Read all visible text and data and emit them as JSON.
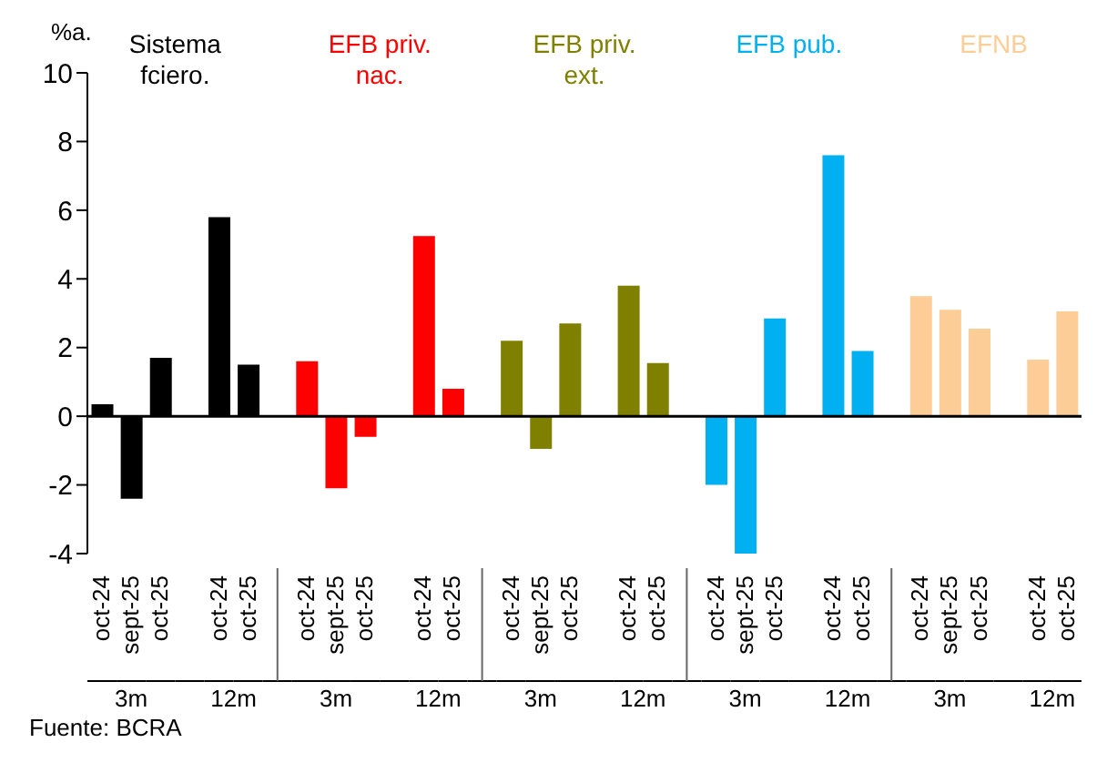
{
  "chart_data": {
    "type": "bar",
    "ylabel": "%a.",
    "categories": [
      "oct-24",
      "sept-25",
      "oct-25",
      null,
      "oct-24",
      "oct-25",
      null,
      "oct-24",
      "sept-25",
      "oct-25",
      null,
      "oct-24",
      "oct-25",
      null,
      "oct-24",
      "sept-25",
      "oct-25",
      null,
      "oct-24",
      "oct-25",
      null,
      "oct-24",
      "sept-25",
      "oct-25",
      null,
      "oct-24",
      "oct-25",
      null,
      "oct-24",
      "sept-25",
      "oct-25",
      null,
      "oct-24",
      "oct-25"
    ],
    "series": [
      {
        "name": "Sistema fciero.",
        "color": "#000000",
        "values": [
          0.35,
          -2.4,
          1.7,
          null,
          5.8,
          1.5,
          null,
          null,
          null,
          null,
          null,
          null,
          null,
          null,
          null,
          null,
          null,
          null,
          null,
          null,
          null,
          null,
          null,
          null,
          null,
          null,
          null,
          null,
          null,
          null,
          null,
          null,
          null,
          null
        ]
      },
      {
        "name": "EFB priv. nac.",
        "color": "#ff0000",
        "values": [
          null,
          null,
          null,
          null,
          null,
          null,
          null,
          1.6,
          -2.1,
          -0.6,
          null,
          5.25,
          0.8,
          null,
          null,
          null,
          null,
          null,
          null,
          null,
          null,
          null,
          null,
          null,
          null,
          null,
          null,
          null,
          null,
          null,
          null,
          null,
          null,
          null
        ]
      },
      {
        "name": "EFB priv. ext.",
        "color": "#808000",
        "values": [
          null,
          null,
          null,
          null,
          null,
          null,
          null,
          null,
          null,
          null,
          null,
          null,
          null,
          null,
          2.2,
          -0.95,
          2.7,
          null,
          3.8,
          1.55,
          null,
          null,
          null,
          null,
          null,
          null,
          null,
          null,
          null,
          null,
          null,
          null,
          null,
          null
        ]
      },
      {
        "name": "EFB pub.",
        "color": "#00b0f0",
        "values": [
          null,
          null,
          null,
          null,
          null,
          null,
          null,
          null,
          null,
          null,
          null,
          null,
          null,
          null,
          null,
          null,
          null,
          null,
          null,
          null,
          null,
          -2.0,
          -4.0,
          2.85,
          null,
          7.6,
          1.9,
          null,
          null,
          null,
          null,
          null,
          null,
          null
        ]
      },
      {
        "name": "EFNB",
        "color": "#fdcd98",
        "values": [
          null,
          null,
          null,
          null,
          null,
          null,
          null,
          null,
          null,
          null,
          null,
          null,
          null,
          null,
          null,
          null,
          null,
          null,
          null,
          null,
          null,
          null,
          null,
          null,
          null,
          null,
          null,
          null,
          3.5,
          3.1,
          2.55,
          null,
          1.65,
          3.05
        ]
      }
    ],
    "ylim": [
      -4,
      10
    ],
    "yticks": [
      -4,
      -2,
      0,
      2,
      4,
      6,
      8,
      10
    ],
    "ref_lines": [
      {
        "axis": "y",
        "value": 0,
        "color": "#000000"
      }
    ],
    "annotations": [
      "3m",
      "12m",
      "3m",
      "12m",
      "3m",
      "12m",
      "3m",
      "12m",
      "3m",
      "12m",
      "Fuente: BCRA"
    ],
    "grid": false,
    "legend": false
  }
}
